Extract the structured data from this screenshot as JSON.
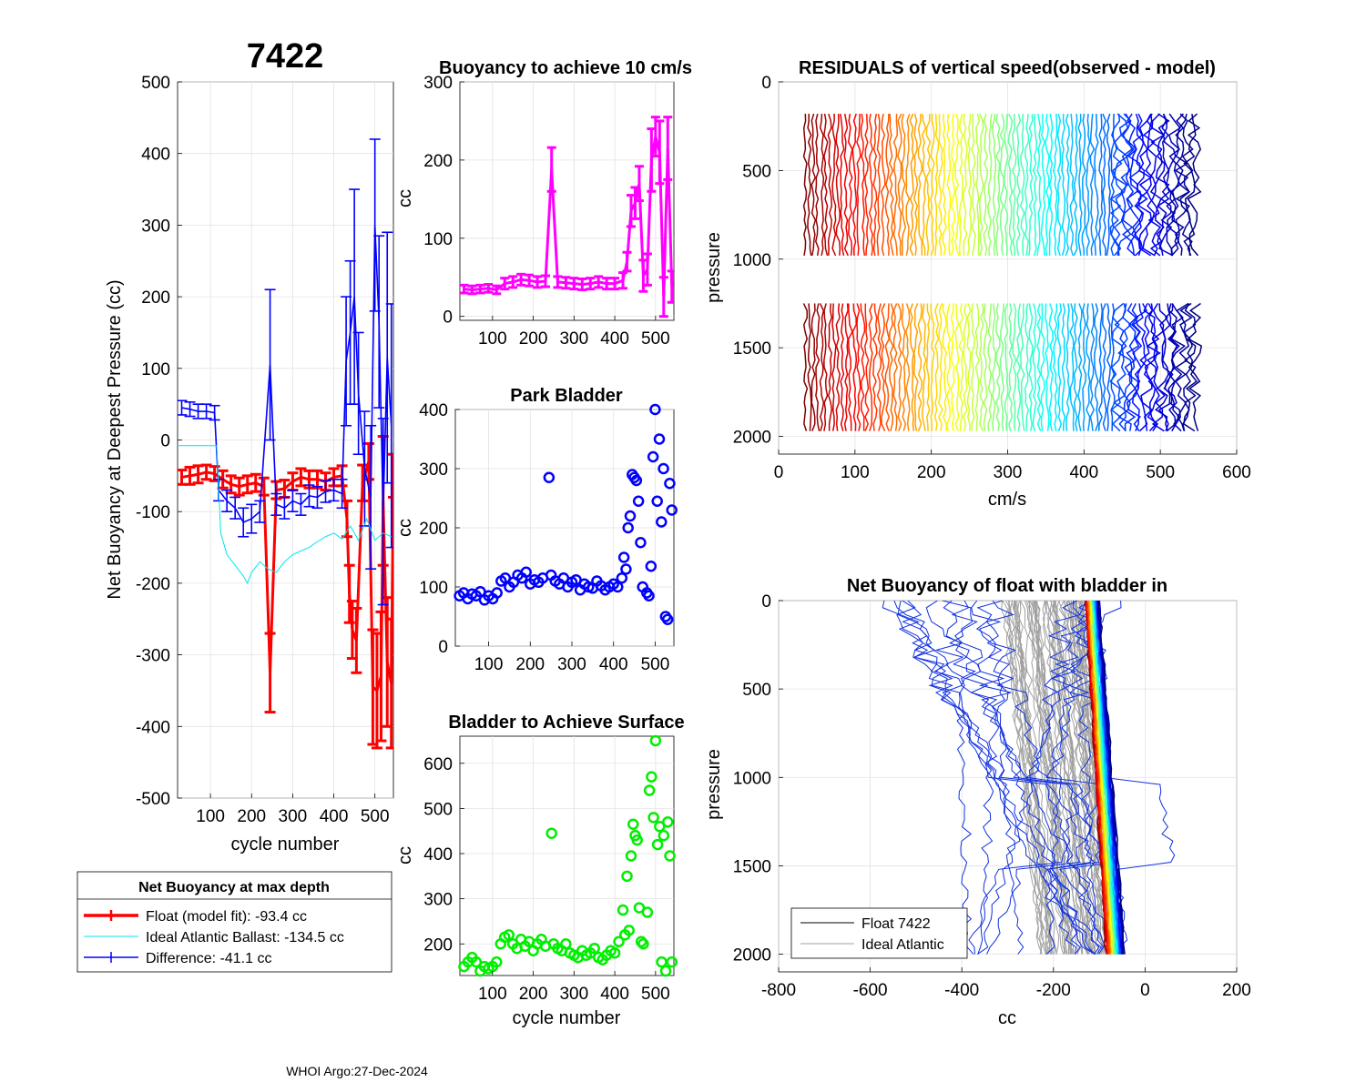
{
  "figure": {
    "float_id": "7422",
    "footer": "WHOI Argo:27-Dec-2024"
  },
  "legend_main": {
    "title": "Net Buoyancy at max depth",
    "entries": [
      {
        "label": "Float (model fit): -93.4 cc",
        "color": "#ff0000"
      },
      {
        "label": "Ideal Atlantic Ballast: -134.5 cc",
        "color": "#00e5ee"
      },
      {
        "label": "Difference: -41.1 cc",
        "color": "#0000ff"
      }
    ]
  },
  "legend_nb": {
    "entries": [
      {
        "label": "Float 7422",
        "color": "#000000"
      },
      {
        "label": "Ideal Atlantic",
        "color": "#a0a0a0"
      }
    ]
  },
  "chart_data": [
    {
      "id": "main",
      "type": "errorbar",
      "title": "7422",
      "xlabel": "cycle number",
      "ylabel": "Net Buoyancy at Deepest Pressure (cc)",
      "xlim": [
        20,
        545
      ],
      "ylim": [
        -500,
        500
      ],
      "xticks": [
        100,
        200,
        300,
        400,
        500
      ],
      "yticks": [
        -500,
        -400,
        -300,
        -200,
        -100,
        0,
        100,
        200,
        300,
        400,
        500
      ],
      "series": [
        {
          "name": "Float (model fit)",
          "color": "#ff0000",
          "points": [
            [
              30,
              -52,
              10
            ],
            [
              50,
              -50,
              12
            ],
            [
              70,
              -48,
              12
            ],
            [
              90,
              -45,
              10
            ],
            [
              110,
              -47,
              10
            ],
            [
              130,
              -55,
              12
            ],
            [
              150,
              -62,
              12
            ],
            [
              170,
              -65,
              12
            ],
            [
              190,
              -62,
              12
            ],
            [
              210,
              -60,
              12
            ],
            [
              230,
              -65,
              12
            ],
            [
              245,
              -325,
              55
            ],
            [
              260,
              -70,
              12
            ],
            [
              280,
              -68,
              12
            ],
            [
              300,
              -58,
              12
            ],
            [
              320,
              -52,
              12
            ],
            [
              340,
              -55,
              12
            ],
            [
              360,
              -55,
              12
            ],
            [
              380,
              -58,
              12
            ],
            [
              400,
              -52,
              12
            ],
            [
              420,
              -50,
              14
            ],
            [
              432,
              -110,
              25
            ],
            [
              438,
              -215,
              40
            ],
            [
              445,
              -265,
              40
            ],
            [
              455,
              -280,
              45
            ],
            [
              470,
              -60,
              25
            ],
            [
              485,
              -30,
              25
            ],
            [
              495,
              -345,
              80
            ],
            [
              505,
              -350,
              80
            ],
            [
              515,
              -330,
              90
            ],
            [
              520,
              -85,
              90
            ],
            [
              530,
              -310,
              90
            ],
            [
              540,
              -340,
              90
            ],
            [
              545,
              -50,
              30
            ]
          ]
        },
        {
          "name": "Difference",
          "color": "#0000ff",
          "points": [
            [
              30,
              45,
              10
            ],
            [
              50,
              43,
              10
            ],
            [
              70,
              40,
              10
            ],
            [
              90,
              40,
              10
            ],
            [
              110,
              38,
              10
            ],
            [
              120,
              -70,
              15
            ],
            [
              140,
              -85,
              15
            ],
            [
              160,
              -95,
              15
            ],
            [
              180,
              -115,
              20
            ],
            [
              200,
              -110,
              20
            ],
            [
              220,
              -100,
              15
            ],
            [
              245,
              105,
              105
            ],
            [
              260,
              -90,
              15
            ],
            [
              280,
              -95,
              15
            ],
            [
              300,
              -85,
              15
            ],
            [
              320,
              -90,
              15
            ],
            [
              340,
              -78,
              15
            ],
            [
              360,
              -80,
              15
            ],
            [
              380,
              -72,
              15
            ],
            [
              400,
              -70,
              15
            ],
            [
              420,
              -75,
              20
            ],
            [
              430,
              110,
              90
            ],
            [
              440,
              150,
              100
            ],
            [
              450,
              200,
              150
            ],
            [
              460,
              65,
              85
            ],
            [
              475,
              -40,
              80
            ],
            [
              490,
              -80,
              100
            ],
            [
              500,
              300,
              120
            ],
            [
              510,
              165,
              120
            ],
            [
              520,
              -100,
              130
            ],
            [
              530,
              115,
              175
            ],
            [
              540,
              20,
              170
            ]
          ]
        },
        {
          "name": "Ideal Atlantic Ballast",
          "color": "#00e5ee",
          "line": true,
          "x": [
            20,
            40,
            60,
            80,
            100,
            115,
            125,
            140,
            160,
            180,
            190,
            200,
            220,
            240,
            260,
            280,
            300,
            320,
            340,
            360,
            380,
            400,
            420,
            440,
            460,
            480,
            500,
            520,
            540
          ],
          "y": [
            -8,
            -8,
            -8,
            -8,
            -8,
            -8,
            -130,
            -160,
            -175,
            -190,
            -200,
            -185,
            -170,
            -180,
            -185,
            -170,
            -160,
            -155,
            -150,
            -142,
            -135,
            -130,
            -138,
            -120,
            -140,
            -110,
            -140,
            -130,
            -135
          ]
        }
      ]
    },
    {
      "id": "buoy10",
      "type": "errorbar",
      "title": "Buoyancy to achieve 10 cm/s",
      "ylabel": "cc",
      "xlim": [
        20,
        545
      ],
      "ylim": [
        -5,
        300
      ],
      "xticks": [
        100,
        200,
        300,
        400,
        500
      ],
      "yticks": [
        0,
        100,
        200,
        300
      ],
      "series": [
        {
          "name": "cc",
          "color": "#ff00ff",
          "points": [
            [
              30,
              35,
              5
            ],
            [
              50,
              34,
              5
            ],
            [
              70,
              35,
              5
            ],
            [
              90,
              36,
              5
            ],
            [
              110,
              34,
              5
            ],
            [
              130,
              42,
              7
            ],
            [
              150,
              44,
              7
            ],
            [
              170,
              47,
              7
            ],
            [
              190,
              46,
              7
            ],
            [
              210,
              44,
              7
            ],
            [
              230,
              45,
              7
            ],
            [
              245,
              188,
              28
            ],
            [
              260,
              44,
              7
            ],
            [
              280,
              43,
              7
            ],
            [
              300,
              42,
              7
            ],
            [
              320,
              41,
              7
            ],
            [
              340,
              42,
              7
            ],
            [
              360,
              44,
              7
            ],
            [
              380,
              42,
              7
            ],
            [
              400,
              42,
              7
            ],
            [
              420,
              46,
              10
            ],
            [
              430,
              70,
              12
            ],
            [
              440,
              135,
              20
            ],
            [
              450,
              145,
              20
            ],
            [
              460,
              170,
              22
            ],
            [
              470,
              52,
              20
            ],
            [
              480,
              60,
              20
            ],
            [
              490,
              200,
              40
            ],
            [
              500,
              230,
              25
            ],
            [
              510,
              210,
              40
            ],
            [
              520,
              25,
              25
            ],
            [
              530,
              215,
              40
            ],
            [
              540,
              38,
              20
            ]
          ]
        }
      ]
    },
    {
      "id": "park",
      "type": "scatter",
      "title": "Park Bladder",
      "ylabel": "cc",
      "xlim": [
        20,
        545
      ],
      "ylim": [
        0,
        400
      ],
      "xticks": [
        100,
        200,
        300,
        400,
        500
      ],
      "yticks": [
        0,
        100,
        200,
        300,
        400
      ],
      "series": [
        {
          "name": "park",
          "color": "#0000ff",
          "x": [
            30,
            40,
            50,
            60,
            70,
            80,
            90,
            100,
            110,
            120,
            130,
            140,
            150,
            160,
            170,
            180,
            190,
            200,
            210,
            220,
            230,
            245,
            250,
            260,
            270,
            280,
            290,
            300,
            310,
            320,
            330,
            340,
            350,
            360,
            370,
            380,
            390,
            400,
            410,
            420,
            425,
            430,
            435,
            440,
            445,
            450,
            455,
            460,
            465,
            470,
            480,
            485,
            490,
            495,
            500,
            505,
            510,
            515,
            520,
            525,
            530,
            535,
            540
          ],
          "y": [
            85,
            90,
            80,
            88,
            85,
            92,
            78,
            85,
            80,
            90,
            110,
            115,
            100,
            108,
            120,
            115,
            125,
            105,
            112,
            108,
            115,
            285,
            120,
            110,
            105,
            115,
            100,
            108,
            112,
            95,
            105,
            100,
            98,
            110,
            102,
            95,
            100,
            105,
            100,
            115,
            150,
            130,
            200,
            220,
            290,
            285,
            280,
            245,
            175,
            100,
            90,
            85,
            135,
            320,
            400,
            245,
            350,
            210,
            300,
            50,
            45,
            275,
            230
          ]
        }
      ]
    },
    {
      "id": "surface",
      "type": "scatter",
      "title": "Bladder to Achieve Surface",
      "xlabel": "cycle number",
      "ylabel": "cc",
      "xlim": [
        20,
        545
      ],
      "ylim": [
        130,
        660
      ],
      "xticks": [
        100,
        200,
        300,
        400,
        500
      ],
      "yticks": [
        200,
        300,
        400,
        500,
        600
      ],
      "series": [
        {
          "name": "surface",
          "color": "#00ee00",
          "x": [
            30,
            40,
            50,
            60,
            70,
            80,
            90,
            100,
            110,
            120,
            130,
            140,
            150,
            160,
            170,
            180,
            190,
            200,
            210,
            220,
            230,
            245,
            250,
            260,
            270,
            280,
            290,
            300,
            310,
            320,
            330,
            340,
            350,
            360,
            370,
            380,
            390,
            400,
            410,
            420,
            425,
            430,
            435,
            440,
            445,
            450,
            455,
            460,
            465,
            470,
            480,
            485,
            490,
            495,
            500,
            505,
            510,
            515,
            520,
            525,
            530,
            535,
            540
          ],
          "y": [
            150,
            160,
            170,
            160,
            140,
            150,
            145,
            150,
            160,
            200,
            215,
            220,
            200,
            190,
            210,
            195,
            205,
            185,
            200,
            210,
            195,
            445,
            200,
            190,
            185,
            200,
            180,
            175,
            170,
            185,
            175,
            180,
            190,
            170,
            165,
            175,
            185,
            180,
            205,
            275,
            220,
            350,
            230,
            395,
            465,
            440,
            430,
            280,
            205,
            200,
            270,
            540,
            570,
            480,
            650,
            420,
            460,
            160,
            440,
            140,
            470,
            395,
            160
          ]
        }
      ]
    },
    {
      "id": "residuals",
      "type": "line",
      "title": "RESIDUALS of vertical speed(observed - model)",
      "xlabel": "cm/s",
      "ylabel": "pressure",
      "xlim": [
        0,
        600
      ],
      "ylim": [
        0,
        2100
      ],
      "xticks": [
        0,
        100,
        200,
        300,
        400,
        500,
        600
      ],
      "yticks": [
        0,
        500,
        1000,
        1500,
        2000
      ],
      "reversed_y": true,
      "segments": [
        [
          180,
          1000
        ],
        [
          1250,
          2000
        ]
      ],
      "cycle_range": [
        35,
        545
      ],
      "colormap": "jet"
    },
    {
      "id": "net_buoyancy",
      "type": "line",
      "title": "Net Buoyancy of float with bladder in",
      "xlabel": "cc",
      "ylabel": "pressure",
      "xlim": [
        -800,
        200
      ],
      "ylim": [
        0,
        2100
      ],
      "xticks": [
        -800,
        -600,
        -400,
        -200,
        0,
        200
      ],
      "yticks": [
        0,
        500,
        1000,
        1500,
        2000
      ],
      "reversed_y": true,
      "ideal_band": {
        "surface_x": [
          -310,
          -130
        ],
        "bottom_x": [
          -230,
          -50
        ]
      },
      "float_band": {
        "surface_x": [
          -130,
          -100
        ],
        "bottom_x": [
          -85,
          -45
        ]
      }
    }
  ]
}
